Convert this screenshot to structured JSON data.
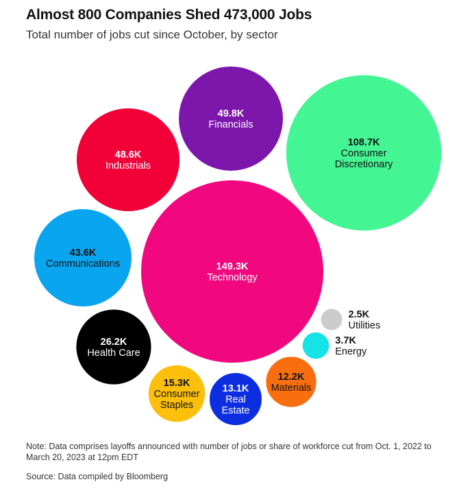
{
  "chart_data": {
    "type": "bubble",
    "title": "Almost 800 Companies Shed 473,000 Jobs",
    "subtitle": "Total number of jobs cut since October, by sector",
    "unit": "jobs",
    "series": [
      {
        "name": "Technology",
        "label_lines": [
          "Technology"
        ],
        "value_label": "149.3K",
        "value": 149300,
        "color": "#f1087f",
        "text_color": "#ffffff",
        "label_position": "inside"
      },
      {
        "name": "Consumer Discretionary",
        "label_lines": [
          "Consumer",
          "Discretionary"
        ],
        "value_label": "108.7K",
        "value": 108700,
        "color": "#44f593",
        "text_color": "#111111",
        "label_position": "inside"
      },
      {
        "name": "Financials",
        "label_lines": [
          "Financials"
        ],
        "value_label": "49.8K",
        "value": 49800,
        "color": "#7d17ac",
        "text_color": "#ffffff",
        "label_position": "inside"
      },
      {
        "name": "Industrials",
        "label_lines": [
          "Industrials"
        ],
        "value_label": "48.6K",
        "value": 48600,
        "color": "#f20038",
        "text_color": "#ffffff",
        "label_position": "inside"
      },
      {
        "name": "Communications",
        "label_lines": [
          "Communications"
        ],
        "value_label": "43.6K",
        "value": 43600,
        "color": "#0aa5ef",
        "text_color": "#111111",
        "label_position": "inside"
      },
      {
        "name": "Health Care",
        "label_lines": [
          "Health Care"
        ],
        "value_label": "26.2K",
        "value": 26200,
        "color": "#000000",
        "text_color": "#ffffff",
        "label_position": "inside"
      },
      {
        "name": "Consumer Staples",
        "label_lines": [
          "Consumer",
          "Staples"
        ],
        "value_label": "15.3K",
        "value": 15300,
        "color": "#fbbf0c",
        "text_color": "#111111",
        "label_position": "inside"
      },
      {
        "name": "Real Estate",
        "label_lines": [
          "Real",
          "Estate"
        ],
        "value_label": "13.1K",
        "value": 13100,
        "color": "#0c2ee0",
        "text_color": "#ffffff",
        "label_position": "inside"
      },
      {
        "name": "Materials",
        "label_lines": [
          "Materials"
        ],
        "value_label": "12.2K",
        "value": 12200,
        "color": "#f96f10",
        "text_color": "#111111",
        "label_position": "inside"
      },
      {
        "name": "Energy",
        "label_lines": [
          "Energy"
        ],
        "value_label": "3.7K",
        "value": 3700,
        "color": "#16e3e6",
        "text_color": "#111111",
        "label_position": "right"
      },
      {
        "name": "Utilities",
        "label_lines": [
          "Utilities"
        ],
        "value_label": "2.5K",
        "value": 2500,
        "color": "#cccccc",
        "text_color": "#111111",
        "label_position": "right"
      }
    ]
  },
  "footer": {
    "note": "Note: Data comprises layoffs announced with number of jobs or share of workforce cut from Oct. 1, 2022 to March 20, 2023 at 12pm EDT",
    "source": "Source: Data compiled by Bloomberg"
  }
}
